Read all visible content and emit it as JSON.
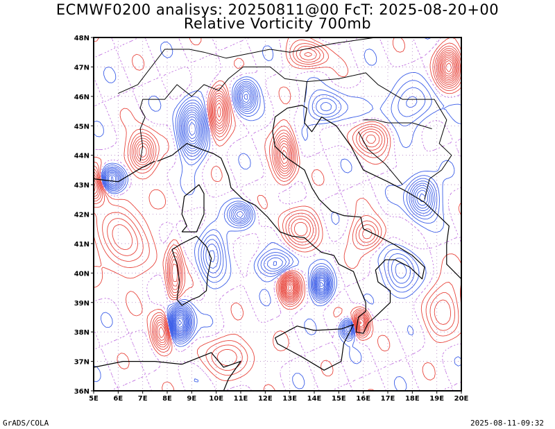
{
  "title": {
    "line1": "ECMWF0200 analisys: 20250811@00 FcT: 2025-08-20+00",
    "line2": "Relative Vorticity 700mb"
  },
  "footer": {
    "left": "GrADS/COLA",
    "right": "2025-08-11-09:32"
  },
  "map": {
    "lat_labels": [
      "48N",
      "47N",
      "46N",
      "45N",
      "44N",
      "43N",
      "42N",
      "41N",
      "40N",
      "39N",
      "38N",
      "37N",
      "36N"
    ],
    "lon_labels": [
      "5E",
      "6E",
      "7E",
      "8E",
      "9E",
      "10E",
      "11E",
      "12E",
      "13E",
      "14E",
      "15E",
      "16E",
      "17E",
      "18E",
      "19E",
      "20E"
    ],
    "lat_range": [
      36,
      48
    ],
    "lon_range": [
      5,
      20
    ],
    "colors": {
      "positive_contour": "#e8453c",
      "negative_contour": "#3a5de8",
      "zero_contour": "#c070e0",
      "border": "#000000",
      "grid": "#b080c0"
    }
  }
}
